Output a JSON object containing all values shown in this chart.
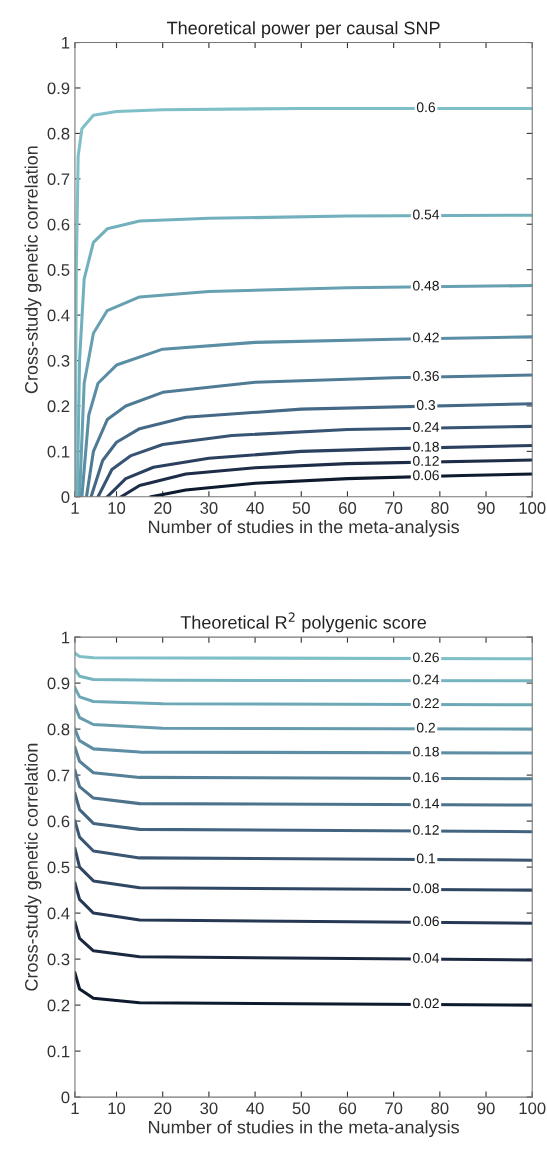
{
  "chart_data": [
    {
      "type": "line",
      "title": "Theoretical power per causal SNP",
      "xlabel": "Number of studies in the meta-analysis",
      "ylabel": "Cross-study genetic correlation",
      "xlim": [
        1,
        100
      ],
      "xticks": [
        1,
        10,
        20,
        30,
        40,
        50,
        60,
        70,
        80,
        90,
        100
      ],
      "ylim": [
        0,
        1
      ],
      "yticks": [
        0,
        0.1,
        0.2,
        0.3,
        0.4,
        0.5,
        0.6,
        0.7,
        0.8,
        0.9,
        1
      ],
      "grid": false,
      "legend": false,
      "series": [
        {
          "name": "0.6",
          "color": "#7fc0c8",
          "x": [
            1,
            1.3,
            1.7,
            2.5,
            5,
            10,
            20,
            50,
            100
          ],
          "values": [
            0,
            0.5,
            0.75,
            0.81,
            0.84,
            0.848,
            0.852,
            0.855,
            0.855
          ]
        },
        {
          "name": "0.54",
          "color": "#72b0bd",
          "x": [
            1.5,
            2,
            3,
            5,
            8,
            15,
            30,
            60,
            100
          ],
          "values": [
            0,
            0.3,
            0.48,
            0.56,
            0.59,
            0.607,
            0.613,
            0.618,
            0.62
          ]
        },
        {
          "name": "0.48",
          "color": "#66a0b1",
          "x": [
            2,
            3,
            5,
            8,
            15,
            30,
            60,
            100
          ],
          "values": [
            0,
            0.25,
            0.36,
            0.41,
            0.44,
            0.452,
            0.46,
            0.465
          ]
        },
        {
          "name": "0.42",
          "color": "#5a8ea4",
          "x": [
            2.5,
            4,
            6,
            10,
            20,
            40,
            70,
            100
          ],
          "values": [
            0,
            0.18,
            0.25,
            0.29,
            0.325,
            0.34,
            0.347,
            0.352
          ]
        },
        {
          "name": "0.36",
          "color": "#4f7b95",
          "x": [
            3.5,
            5,
            8,
            12,
            20,
            40,
            70,
            100
          ],
          "values": [
            0,
            0.1,
            0.17,
            0.2,
            0.23,
            0.252,
            0.262,
            0.268
          ]
        },
        {
          "name": "0.3",
          "color": "#446885",
          "x": [
            4.5,
            7,
            10,
            15,
            25,
            50,
            100
          ],
          "values": [
            0,
            0.08,
            0.12,
            0.15,
            0.175,
            0.193,
            0.205
          ]
        },
        {
          "name": "0.24",
          "color": "#385473",
          "x": [
            6,
            9,
            13,
            20,
            35,
            60,
            100
          ],
          "values": [
            0,
            0.06,
            0.09,
            0.115,
            0.135,
            0.148,
            0.155
          ]
        },
        {
          "name": "0.18",
          "color": "#2b405e",
          "x": [
            8,
            12,
            18,
            30,
            50,
            70,
            100
          ],
          "values": [
            0,
            0.04,
            0.065,
            0.085,
            0.1,
            0.106,
            0.113
          ]
        },
        {
          "name": "0.12",
          "color": "#1d2c47",
          "x": [
            11,
            15,
            25,
            40,
            60,
            100
          ],
          "values": [
            0,
            0.025,
            0.05,
            0.064,
            0.073,
            0.081
          ]
        },
        {
          "name": "0.06",
          "color": "#0e1a2e",
          "x": [
            17.5,
            25,
            40,
            60,
            85,
            100
          ],
          "values": [
            0,
            0.015,
            0.03,
            0.04,
            0.047,
            0.05
          ]
        }
      ]
    },
    {
      "type": "line",
      "title": "Theoretical R$^{2}$ polygenic score",
      "xlabel": "Number of studies in the meta-analysis",
      "ylabel": "Cross-study genetic correlation",
      "xlim": [
        1,
        100
      ],
      "xticks": [
        1,
        10,
        20,
        30,
        40,
        50,
        60,
        70,
        80,
        90,
        100
      ],
      "ylim": [
        0,
        1
      ],
      "yticks": [
        0,
        0.1,
        0.2,
        0.3,
        0.4,
        0.5,
        0.6,
        0.7,
        0.8,
        0.9,
        1
      ],
      "grid": false,
      "legend": false,
      "series": [
        {
          "name": "0.26",
          "color": "#7fc0c8",
          "x": [
            1,
            2,
            5,
            100
          ],
          "values": [
            0.965,
            0.958,
            0.955,
            0.953
          ]
        },
        {
          "name": "0.24",
          "color": "#76b4c0",
          "x": [
            1,
            2,
            5,
            20,
            100
          ],
          "values": [
            0.93,
            0.915,
            0.908,
            0.906,
            0.905
          ]
        },
        {
          "name": "0.22",
          "color": "#6da8b7",
          "x": [
            1,
            2,
            5,
            20,
            100
          ],
          "values": [
            0.89,
            0.87,
            0.86,
            0.855,
            0.853
          ]
        },
        {
          "name": "0.2",
          "color": "#659bad",
          "x": [
            1,
            2,
            5,
            20,
            100
          ],
          "values": [
            0.85,
            0.825,
            0.81,
            0.802,
            0.8
          ]
        },
        {
          "name": "0.18",
          "color": "#5d8ea3",
          "x": [
            1,
            2,
            5,
            15,
            100
          ],
          "values": [
            0.8,
            0.775,
            0.757,
            0.75,
            0.748
          ]
        },
        {
          "name": "0.16",
          "color": "#548098",
          "x": [
            1,
            2,
            5,
            15,
            100
          ],
          "values": [
            0.76,
            0.73,
            0.705,
            0.695,
            0.692
          ]
        },
        {
          "name": "0.14",
          "color": "#4c728c",
          "x": [
            1,
            2,
            5,
            15,
            100
          ],
          "values": [
            0.71,
            0.675,
            0.65,
            0.638,
            0.635
          ]
        },
        {
          "name": "0.12",
          "color": "#436480",
          "x": [
            1,
            2,
            5,
            15,
            100
          ],
          "values": [
            0.66,
            0.625,
            0.595,
            0.582,
            0.577
          ]
        },
        {
          "name": "0.1",
          "color": "#3a5672",
          "x": [
            1,
            2,
            5,
            15,
            100
          ],
          "values": [
            0.6,
            0.565,
            0.535,
            0.52,
            0.515
          ]
        },
        {
          "name": "0.08",
          "color": "#304763",
          "x": [
            1,
            2,
            5,
            15,
            100
          ],
          "values": [
            0.54,
            0.5,
            0.47,
            0.455,
            0.45
          ]
        },
        {
          "name": "0.06",
          "color": "#263853",
          "x": [
            1,
            2,
            5,
            15,
            100
          ],
          "values": [
            0.465,
            0.43,
            0.4,
            0.385,
            0.378
          ]
        },
        {
          "name": "0.04",
          "color": "#1a2840",
          "x": [
            1,
            2,
            5,
            15,
            100
          ],
          "values": [
            0.38,
            0.345,
            0.318,
            0.305,
            0.298
          ]
        },
        {
          "name": "0.02",
          "color": "#0e1a2e",
          "x": [
            1,
            2,
            5,
            15,
            100
          ],
          "values": [
            0.27,
            0.235,
            0.215,
            0.205,
            0.2
          ]
        }
      ]
    }
  ]
}
